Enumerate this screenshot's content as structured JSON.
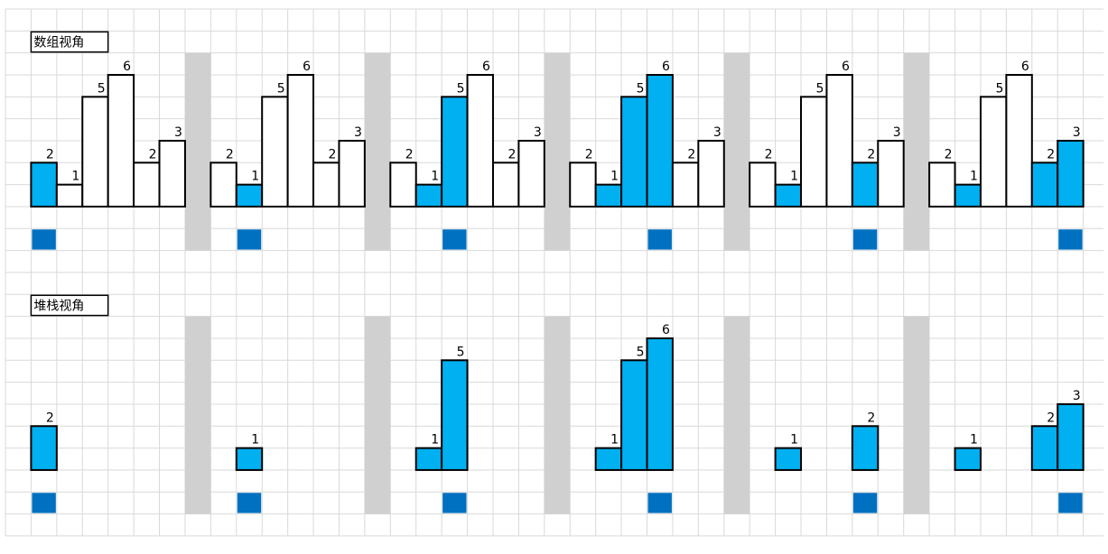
{
  "sections": [
    {
      "title": "数组视角"
    },
    {
      "title": "堆栈视角"
    }
  ],
  "array": [
    2,
    1,
    5,
    6,
    2,
    3
  ],
  "steps": [
    {
      "current": 0,
      "stack": [
        0
      ]
    },
    {
      "current": 1,
      "stack": [
        1
      ]
    },
    {
      "current": 2,
      "stack": [
        1,
        2
      ]
    },
    {
      "current": 3,
      "stack": [
        1,
        2,
        3
      ]
    },
    {
      "current": 4,
      "stack": [
        1,
        4
      ]
    },
    {
      "current": 5,
      "stack": [
        1,
        4,
        5
      ]
    }
  ]
}
